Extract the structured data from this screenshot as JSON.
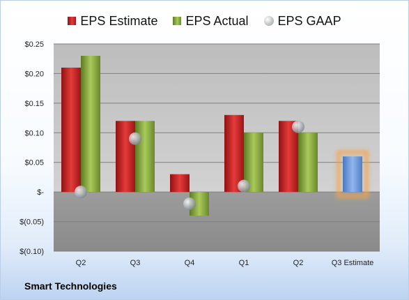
{
  "company": "Smart Technologies",
  "legend": [
    {
      "label": "EPS Estimate",
      "marker": "red-bar"
    },
    {
      "label": "EPS Actual",
      "marker": "green-bar"
    },
    {
      "label": "EPS GAAP",
      "marker": "gray-circle"
    }
  ],
  "colors": {
    "estimate": "#cc2222",
    "actual": "#8cb043",
    "gaap": "#b0b4b8",
    "forecast": "#6f9ee0",
    "forecast_glow": "#f5a34a"
  },
  "chart_data": {
    "type": "bar",
    "title": "",
    "xlabel": "",
    "ylabel": "",
    "ylim": [
      -0.1,
      0.25
    ],
    "yticks": [
      0.25,
      0.2,
      0.15,
      0.1,
      0.05,
      0,
      -0.05,
      -0.1
    ],
    "ytick_labels": [
      "$0.25",
      "$0.20",
      "$0.15",
      "$0.10",
      "$0.05",
      "$-",
      "$(0.05)",
      "$(0.10)"
    ],
    "categories": [
      "Q2",
      "Q3",
      "Q4",
      "Q1",
      "Q2",
      "Q3 Estimate"
    ],
    "series": [
      {
        "name": "EPS Estimate",
        "values": [
          0.21,
          0.12,
          0.03,
          0.13,
          0.12,
          null
        ]
      },
      {
        "name": "EPS Actual",
        "values": [
          0.23,
          0.12,
          -0.04,
          0.1,
          0.1,
          null
        ]
      },
      {
        "name": "EPS GAAP",
        "values": [
          0.0,
          0.09,
          -0.02,
          0.01,
          0.11,
          null
        ]
      }
    ],
    "forecast": {
      "category": "Q3 Estimate",
      "value": 0.06
    },
    "grid": true,
    "legend_position": "top"
  }
}
